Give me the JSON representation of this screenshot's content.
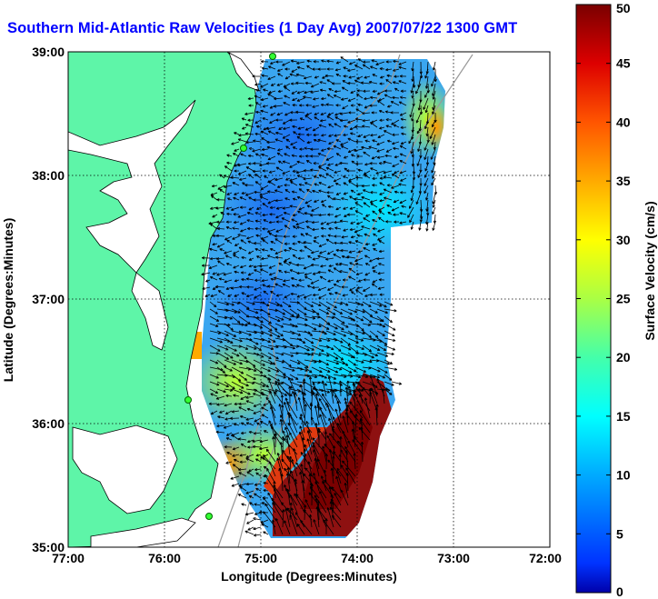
{
  "title": "Southern Mid-Atlantic Raw Velocities (1 Day Avg) 2007/07/22 1300 GMT",
  "map": {
    "xlabel": "Longitude (Degrees:Minutes)",
    "ylabel": "Latitude (Degrees:Minutes)",
    "x_ticks": [
      "77:00",
      "76:00",
      "75:00",
      "74:00",
      "73:00",
      "72:00"
    ],
    "y_ticks": [
      "39:00",
      "38:00",
      "37:00",
      "36:00",
      "35:00"
    ],
    "lon_range": [
      -77,
      -72
    ],
    "lat_range": [
      35,
      39
    ],
    "land_color": "#5ef5a8",
    "grid": "dotted"
  },
  "colorbar": {
    "label": "Surface Velocity (cm/s)",
    "range": [
      0,
      50
    ],
    "ticks": [
      "0",
      "5",
      "10",
      "15",
      "20",
      "25",
      "30",
      "35",
      "40",
      "45",
      "50"
    ],
    "tick_values": [
      0,
      5,
      10,
      15,
      20,
      25,
      30,
      35,
      40,
      45,
      50
    ],
    "colormap": "jet"
  }
}
